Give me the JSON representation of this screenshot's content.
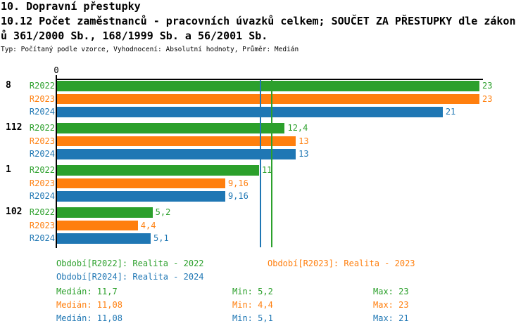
{
  "title": {
    "line1": "10. Dopravní přestupky",
    "line2": "10.12 Počet zaměstnanců - pracovních úvazků celkem; SOUČET ZA PŘESTUPKY dle zákon",
    "line3": "ů 361/2000 Sb., 168/1999 Sb. a 56/2001 Sb."
  },
  "subtitle": "Typ: Počítaný podle vzorce, Vyhodnocení: Absolutní hodnoty, Průměr: Medián",
  "colors": {
    "green": "#2ca02c",
    "orange": "#ff7f0e",
    "blue": "#1f77b4",
    "axis": "#000000",
    "background": "#ffffff"
  },
  "chart_data": {
    "type": "bar",
    "orientation": "horizontal",
    "title": "10.12 Počet zaměstnanců - pracovních úvazků celkem; SOUČET ZA PŘESTUPKY dle zákonů 361/2000 Sb., 168/1999 Sb. a 56/2001 Sb.",
    "xlabel": "",
    "ylabel": "",
    "xlim": [
      0,
      23
    ],
    "grid": false,
    "legend_position": "bottom",
    "x_ticks": [
      {
        "value": 0,
        "label": "0"
      }
    ],
    "categories": [
      "8",
      "112",
      "1",
      "102"
    ],
    "series": [
      {
        "name": "R2022",
        "color": "#2ca02c",
        "values": [
          23,
          12.4,
          11,
          5.2
        ],
        "value_labels": [
          "23",
          "12,4",
          "11",
          "5,2"
        ],
        "median": 11.7
      },
      {
        "name": "R2023",
        "color": "#ff7f0e",
        "values": [
          23,
          13,
          9.16,
          4.4
        ],
        "value_labels": [
          "23",
          "13",
          "9,16",
          "4,4"
        ],
        "median": 11.08
      },
      {
        "name": "R2024",
        "color": "#1f77b4",
        "values": [
          21,
          13,
          9.16,
          5.1
        ],
        "value_labels": [
          "21",
          "13",
          "9,16",
          "5,1"
        ],
        "median": 11.08
      }
    ]
  },
  "legend": {
    "items": [
      {
        "label": "Období[R2022]: Realita - 2022",
        "color": "#2ca02c"
      },
      {
        "label": "Období[R2023]: Realita - 2023",
        "color": "#ff7f0e"
      },
      {
        "label": "Období[R2024]: Realita - 2024",
        "color": "#1f77b4"
      }
    ]
  },
  "stats": {
    "rows": [
      {
        "median": "Medián: 11,7",
        "min": "Min: 5,2",
        "max": "Max: 23",
        "color": "#2ca02c"
      },
      {
        "median": "Medián: 11,08",
        "min": "Min: 4,4",
        "max": "Max: 23",
        "color": "#ff7f0e"
      },
      {
        "median": "Medián: 11,08",
        "min": "Min: 5,1",
        "max": "Max: 21",
        "color": "#1f77b4"
      }
    ]
  }
}
